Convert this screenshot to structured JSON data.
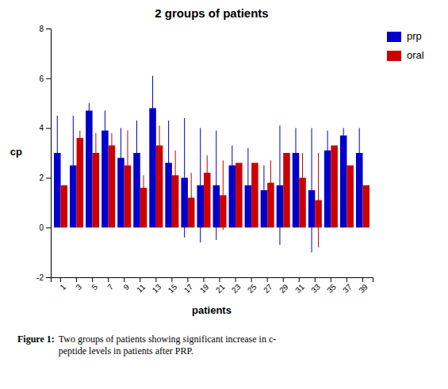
{
  "chart_data": {
    "type": "bar",
    "title": "2 groups of patients",
    "xlabel": "patients",
    "ylabel": "cp",
    "categories": [
      "1",
      "3",
      "5",
      "7",
      "9",
      "11",
      "13",
      "15",
      "17",
      "19",
      "21",
      "23",
      "25",
      "27",
      "29",
      "31",
      "33",
      "35",
      "37",
      "39"
    ],
    "series": [
      {
        "name": "prp",
        "color": "#0000CC",
        "values": [
          3.0,
          2.5,
          4.7,
          3.9,
          2.8,
          3.0,
          4.8,
          2.6,
          2.0,
          1.7,
          1.7,
          2.5,
          1.7,
          1.5,
          1.7,
          3.0,
          1.5,
          3.1,
          3.7,
          3.0
        ],
        "errors": [
          1.5,
          2.0,
          0.3,
          0.8,
          1.2,
          1.3,
          1.3,
          1.7,
          2.4,
          2.3,
          2.2,
          0.8,
          1.5,
          1.0,
          2.4,
          1.0,
          2.5,
          0.8,
          0.3,
          1.0
        ]
      },
      {
        "name": "oral",
        "color": "#CC0000",
        "values": [
          1.7,
          3.6,
          3.0,
          3.3,
          2.5,
          1.6,
          3.3,
          2.1,
          1.2,
          2.2,
          1.3,
          2.6,
          2.6,
          1.8,
          3.0,
          2.0,
          1.1,
          3.3,
          2.5,
          1.7
        ],
        "errors": [
          0.0,
          0.3,
          0.8,
          0.5,
          1.4,
          0.5,
          0.8,
          1.0,
          1.0,
          0.7,
          1.4,
          0.0,
          0.0,
          0.9,
          0.0,
          1.0,
          1.9,
          0.0,
          0.0,
          0.0
        ]
      }
    ],
    "ylim": [
      -2,
      8
    ],
    "yticks": [
      -2,
      0,
      2,
      4,
      6,
      8
    ],
    "grid": false,
    "legend": "right",
    "caption": [
      "Figure 1:",
      "Two groups of patients showing significant increase in c-\npeptide levels in patients after PRP."
    ]
  }
}
